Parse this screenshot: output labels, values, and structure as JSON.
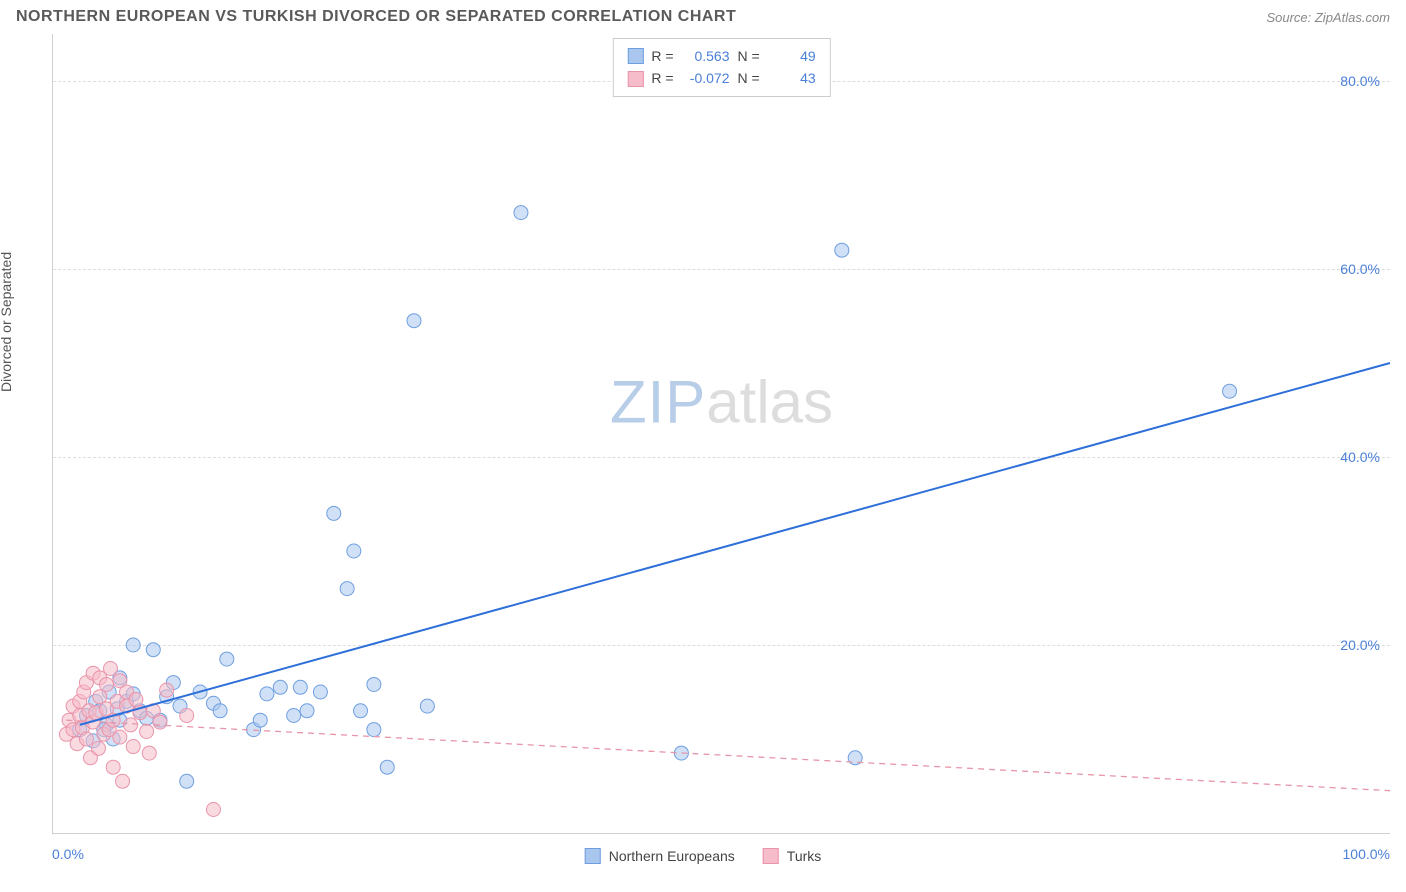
{
  "title": "NORTHERN EUROPEAN VS TURKISH DIVORCED OR SEPARATED CORRELATION CHART",
  "source": "Source: ZipAtlas.com",
  "watermark": {
    "part1": "ZIP",
    "part2": "atlas"
  },
  "chart": {
    "type": "scatter",
    "ylabel": "Divorced or Separated",
    "xlim": [
      0,
      100
    ],
    "ylim": [
      0,
      85
    ],
    "xticks": [
      {
        "value": 0,
        "label": "0.0%"
      },
      {
        "value": 100,
        "label": "100.0%"
      }
    ],
    "yticks": [
      {
        "value": 20,
        "label": "20.0%"
      },
      {
        "value": 40,
        "label": "40.0%"
      },
      {
        "value": 60,
        "label": "60.0%"
      },
      {
        "value": 80,
        "label": "80.0%"
      }
    ],
    "background_color": "#ffffff",
    "grid_color": "#dddddd",
    "axis_color": "#d0d0d0",
    "tick_label_color": "#4a7fd8",
    "tick_fontsize": 14,
    "ylabel_fontsize": 14,
    "marker_radius": 7,
    "marker_opacity": 0.55,
    "series": [
      {
        "name": "Northern Europeans",
        "color_fill": "#a9c6ee",
        "color_stroke": "#6f9fe0",
        "trend": {
          "x1": 2,
          "y1": 11.5,
          "x2": 100,
          "y2": 50,
          "stroke": "#2e6fd9",
          "width": 2,
          "dash": "none"
        },
        "stats": {
          "R": "0.563",
          "N": "49"
        },
        "points": [
          [
            2,
            11
          ],
          [
            2.5,
            12.5
          ],
          [
            3,
            9.8
          ],
          [
            3.2,
            14
          ],
          [
            3.5,
            13
          ],
          [
            4,
            11.5
          ],
          [
            4.2,
            15
          ],
          [
            4.5,
            10
          ],
          [
            5,
            16.5
          ],
          [
            5,
            12
          ],
          [
            5.5,
            14
          ],
          [
            6,
            14.8
          ],
          [
            6,
            20
          ],
          [
            6.5,
            13
          ],
          [
            7,
            12.2
          ],
          [
            7.5,
            19.5
          ],
          [
            8,
            12
          ],
          [
            8.5,
            14.5
          ],
          [
            9,
            16
          ],
          [
            9.5,
            13.5
          ],
          [
            10,
            5.5
          ],
          [
            11,
            15
          ],
          [
            12,
            13.8
          ],
          [
            12.5,
            13
          ],
          [
            13,
            18.5
          ],
          [
            15,
            11
          ],
          [
            15.5,
            12
          ],
          [
            16,
            14.8
          ],
          [
            17,
            15.5
          ],
          [
            18,
            12.5
          ],
          [
            18.5,
            15.5
          ],
          [
            19,
            13
          ],
          [
            20,
            15
          ],
          [
            21,
            34
          ],
          [
            22,
            26
          ],
          [
            22.5,
            30
          ],
          [
            23,
            13
          ],
          [
            24,
            11
          ],
          [
            24,
            15.8
          ],
          [
            25,
            7
          ],
          [
            27,
            54.5
          ],
          [
            28,
            13.5
          ],
          [
            35,
            66
          ],
          [
            47,
            8.5
          ],
          [
            59,
            62
          ],
          [
            60,
            8
          ],
          [
            88,
            47
          ],
          [
            3.8,
            11
          ],
          [
            4.8,
            13.2
          ]
        ]
      },
      {
        "name": "Turks",
        "color_fill": "#f6bcc9",
        "color_stroke": "#ea94aa",
        "trend": {
          "x1": 1,
          "y1": 12,
          "x2": 100,
          "y2": 4.5,
          "stroke": "#e796a9",
          "width": 1.3,
          "dash": "6 5"
        },
        "stats": {
          "R": "-0.072",
          "N": "43"
        },
        "points": [
          [
            1,
            10.5
          ],
          [
            1.2,
            12
          ],
          [
            1.5,
            11
          ],
          [
            1.5,
            13.5
          ],
          [
            1.8,
            9.5
          ],
          [
            2,
            12.5
          ],
          [
            2,
            14
          ],
          [
            2.2,
            11.2
          ],
          [
            2.3,
            15
          ],
          [
            2.5,
            10
          ],
          [
            2.5,
            16
          ],
          [
            2.7,
            13
          ],
          [
            2.8,
            8
          ],
          [
            3,
            11.8
          ],
          [
            3,
            17
          ],
          [
            3.2,
            12.8
          ],
          [
            3.4,
            9
          ],
          [
            3.5,
            14.5
          ],
          [
            3.5,
            16.5
          ],
          [
            3.8,
            10.5
          ],
          [
            4,
            13.2
          ],
          [
            4,
            15.8
          ],
          [
            4.2,
            11
          ],
          [
            4.3,
            17.5
          ],
          [
            4.5,
            12
          ],
          [
            4.5,
            7
          ],
          [
            4.8,
            14
          ],
          [
            5,
            10.2
          ],
          [
            5,
            16.2
          ],
          [
            5.2,
            5.5
          ],
          [
            5.5,
            13.5
          ],
          [
            5.5,
            15
          ],
          [
            5.8,
            11.5
          ],
          [
            6,
            9.2
          ],
          [
            6.2,
            14.2
          ],
          [
            6.5,
            12.8
          ],
          [
            7,
            10.8
          ],
          [
            7.2,
            8.5
          ],
          [
            7.5,
            13
          ],
          [
            8,
            11.8
          ],
          [
            8.5,
            15.2
          ],
          [
            10,
            12.5
          ],
          [
            12,
            2.5
          ]
        ]
      }
    ],
    "legend_labels": {
      "series1": "Northern Europeans",
      "series2": "Turks"
    },
    "stats_box_labels": {
      "R": "R =",
      "N": "N ="
    }
  }
}
